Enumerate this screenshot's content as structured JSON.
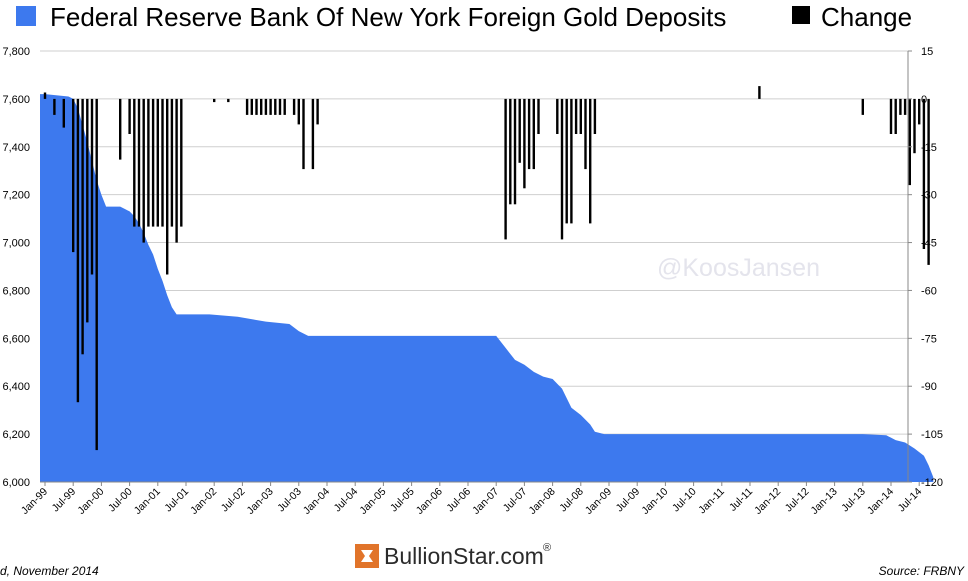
{
  "chart_data": {
    "type": "area",
    "title": "",
    "legend": {
      "placement": "top",
      "items": [
        {
          "label": "Federal Reserve Bank Of New York Foreign Gold Deposits",
          "color": "#3d79ee"
        },
        {
          "label": "Change",
          "color": "#000000"
        }
      ]
    },
    "left_axis": {
      "ylim": [
        6000,
        7800
      ],
      "ticks": [
        "6,000",
        "6,200",
        "6,400",
        "6,600",
        "6,800",
        "7,000",
        "7,200",
        "7,400",
        "7,600",
        "7,800"
      ]
    },
    "right_axis": {
      "ylim": [
        -120,
        15
      ],
      "ticks": [
        "15",
        "0",
        "-15",
        "-30",
        "-45",
        "-60",
        "-75",
        "-90",
        "-105",
        "-120"
      ]
    },
    "x_ticks": [
      "Jan-99",
      "Jul-99",
      "Jan-00",
      "Jul-00",
      "Jan-01",
      "Jul-01",
      "Jan-02",
      "Jul-02",
      "Jan-03",
      "Jul-03",
      "Jan-04",
      "Jul-04",
      "Jan-05",
      "Jul-05",
      "Jan-06",
      "Jul-06",
      "Jan-07",
      "Jul-07",
      "Jan-08",
      "Jul-08",
      "Jan-09",
      "Jul-09",
      "Jan-10",
      "Jul-10",
      "Jan-11",
      "Jul-11",
      "Jan-12",
      "Jul-12",
      "Jan-13",
      "Jul-13",
      "Jan-14",
      "Jul-14"
    ],
    "grid": "horizontal",
    "deposits_series": {
      "name": "Federal Reserve Bank Of New York Foreign Gold Deposits",
      "color": "#3d79ee",
      "points": [
        [
          "1999-01",
          7620
        ],
        [
          "1999-06",
          7610
        ],
        [
          "1999-07",
          7600
        ],
        [
          "1999-08",
          7560
        ],
        [
          "1999-09",
          7490
        ],
        [
          "1999-10",
          7420
        ],
        [
          "1999-11",
          7340
        ],
        [
          "1999-12",
          7260
        ],
        [
          "2000-01",
          7200
        ],
        [
          "2000-02",
          7150
        ],
        [
          "2000-05",
          7150
        ],
        [
          "2000-06",
          7140
        ],
        [
          "2000-07",
          7130
        ],
        [
          "2000-08",
          7110
        ],
        [
          "2000-09",
          7080
        ],
        [
          "2000-10",
          7040
        ],
        [
          "2000-11",
          6990
        ],
        [
          "2000-12",
          6950
        ],
        [
          "2001-01",
          6890
        ],
        [
          "2001-02",
          6840
        ],
        [
          "2001-03",
          6780
        ],
        [
          "2001-04",
          6730
        ],
        [
          "2001-05",
          6700
        ],
        [
          "2001-12",
          6700
        ],
        [
          "2002-06",
          6690
        ],
        [
          "2002-12",
          6670
        ],
        [
          "2003-05",
          6660
        ],
        [
          "2003-07",
          6630
        ],
        [
          "2003-09",
          6610
        ],
        [
          "2007-01",
          6610
        ],
        [
          "2007-03",
          6560
        ],
        [
          "2007-05",
          6510
        ],
        [
          "2007-07",
          6490
        ],
        [
          "2007-09",
          6460
        ],
        [
          "2007-11",
          6440
        ],
        [
          "2008-01",
          6430
        ],
        [
          "2008-03",
          6390
        ],
        [
          "2008-05",
          6310
        ],
        [
          "2008-07",
          6280
        ],
        [
          "2008-09",
          6240
        ],
        [
          "2008-10",
          6210
        ],
        [
          "2008-12",
          6200
        ],
        [
          "2013-07",
          6200
        ],
        [
          "2013-12",
          6195
        ],
        [
          "2014-02",
          6175
        ],
        [
          "2014-04",
          6165
        ],
        [
          "2014-06",
          6140
        ],
        [
          "2014-08",
          6110
        ],
        [
          "2014-09",
          6070
        ],
        [
          "2014-10",
          6020
        ]
      ]
    },
    "change_series": {
      "name": "Change",
      "color": "#000000",
      "points": [
        [
          "1999-01",
          2
        ],
        [
          "1999-03",
          -5
        ],
        [
          "1999-05",
          -9
        ],
        [
          "1999-07",
          -48
        ],
        [
          "1999-08",
          -95
        ],
        [
          "1999-09",
          -80
        ],
        [
          "1999-10",
          -70
        ],
        [
          "1999-11",
          -55
        ],
        [
          "1999-12",
          -110
        ],
        [
          "2000-05",
          -19
        ],
        [
          "2000-07",
          -11
        ],
        [
          "2000-08",
          -40
        ],
        [
          "2000-09",
          -40
        ],
        [
          "2000-10",
          -45
        ],
        [
          "2000-11",
          -40
        ],
        [
          "2000-12",
          -40
        ],
        [
          "2001-01",
          -40
        ],
        [
          "2001-02",
          -40
        ],
        [
          "2001-03",
          -55
        ],
        [
          "2001-04",
          -40
        ],
        [
          "2001-05",
          -45
        ],
        [
          "2001-06",
          -40
        ],
        [
          "2002-01",
          -1
        ],
        [
          "2002-04",
          -1
        ],
        [
          "2002-08",
          -5
        ],
        [
          "2002-09",
          -5
        ],
        [
          "2002-10",
          -5
        ],
        [
          "2002-11",
          -5
        ],
        [
          "2002-12",
          -5
        ],
        [
          "2003-01",
          -5
        ],
        [
          "2003-02",
          -5
        ],
        [
          "2003-03",
          -5
        ],
        [
          "2003-04",
          -5
        ],
        [
          "2003-06",
          -5
        ],
        [
          "2003-07",
          -8
        ],
        [
          "2003-08",
          -22
        ],
        [
          "2003-10",
          -22
        ],
        [
          "2003-11",
          -8
        ],
        [
          "2007-03",
          -44
        ],
        [
          "2007-04",
          -33
        ],
        [
          "2007-05",
          -33
        ],
        [
          "2007-06",
          -20
        ],
        [
          "2007-07",
          -28
        ],
        [
          "2007-08",
          -22
        ],
        [
          "2007-09",
          -22
        ],
        [
          "2007-10",
          -11
        ],
        [
          "2008-02",
          -11
        ],
        [
          "2008-03",
          -44
        ],
        [
          "2008-04",
          -39
        ],
        [
          "2008-05",
          -39
        ],
        [
          "2008-06",
          -11
        ],
        [
          "2008-07",
          -11
        ],
        [
          "2008-08",
          -22
        ],
        [
          "2008-09",
          -39
        ],
        [
          "2008-10",
          -11
        ],
        [
          "2011-09",
          4
        ],
        [
          "2013-07",
          -5
        ],
        [
          "2014-01",
          -11
        ],
        [
          "2014-02",
          -11
        ],
        [
          "2014-03",
          -5
        ],
        [
          "2014-04",
          -5
        ],
        [
          "2014-05",
          -27
        ],
        [
          "2014-06",
          -17
        ],
        [
          "2014-07",
          -8
        ],
        [
          "2014-08",
          -47
        ],
        [
          "2014-09",
          -52
        ]
      ]
    },
    "annotations": [
      "@KoosJansen"
    ]
  },
  "footer": {
    "left": "d, November 2014",
    "brand": "BullionStar.com",
    "brand_mark": "®",
    "right": "Source: FRBNY"
  }
}
